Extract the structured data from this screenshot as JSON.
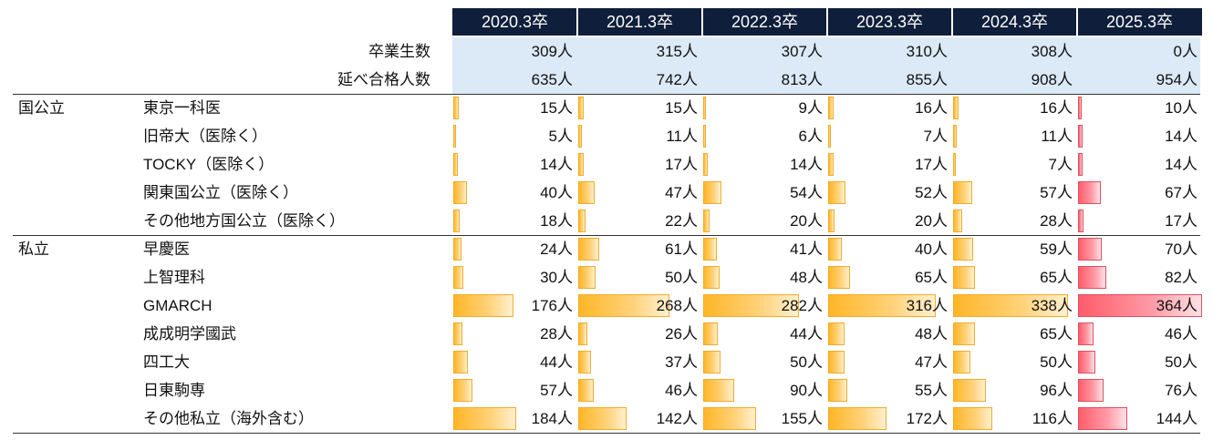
{
  "chart_data": {
    "type": "table",
    "columns": [
      "2020.3卒",
      "2021.3卒",
      "2022.3卒",
      "2023.3卒",
      "2024.3卒",
      "2025.3卒"
    ],
    "summary_rows": [
      {
        "label": "卒業生数",
        "values": [
          "309人",
          "315人",
          "307人",
          "310人",
          "308人",
          "0人"
        ]
      },
      {
        "label": "延べ合格人数",
        "values": [
          "635人",
          "742人",
          "813人",
          "855人",
          "908人",
          "954人"
        ]
      }
    ],
    "groups": [
      {
        "label": "国公立",
        "rows": [
          {
            "label": "東京一科医",
            "values": [
              15,
              15,
              9,
              16,
              16,
              10
            ]
          },
          {
            "label": "旧帝大（医除く）",
            "values": [
              5,
              11,
              6,
              7,
              11,
              14
            ]
          },
          {
            "label": "TOCKY（医除く）",
            "values": [
              14,
              17,
              14,
              17,
              7,
              14
            ]
          },
          {
            "label": "関東国公立（医除く）",
            "values": [
              40,
              47,
              54,
              52,
              57,
              67
            ]
          },
          {
            "label": "その他地方国公立（医除く）",
            "values": [
              18,
              22,
              20,
              20,
              28,
              17
            ]
          }
        ]
      },
      {
        "label": "私立",
        "rows": [
          {
            "label": "早慶医",
            "values": [
              24,
              61,
              41,
              40,
              59,
              70
            ]
          },
          {
            "label": "上智理科",
            "values": [
              30,
              50,
              48,
              65,
              65,
              82
            ]
          },
          {
            "label": "GMARCH",
            "values": [
              176,
              268,
              282,
              316,
              338,
              364
            ]
          },
          {
            "label": "成成明学國武",
            "values": [
              28,
              26,
              44,
              48,
              65,
              46
            ]
          },
          {
            "label": "四工大",
            "values": [
              44,
              37,
              50,
              47,
              50,
              50
            ]
          },
          {
            "label": "日東駒専",
            "values": [
              57,
              46,
              90,
              55,
              96,
              76
            ]
          },
          {
            "label": "その他私立（海外含む）",
            "values": [
              184,
              142,
              155,
              172,
              116,
              144
            ]
          }
        ]
      }
    ],
    "unit": "人",
    "colors": {
      "header": "#0f1e3a",
      "summary_bg": "#dce9f7",
      "bar": "#ffb627",
      "bar_last": "#ff5c6b"
    }
  }
}
